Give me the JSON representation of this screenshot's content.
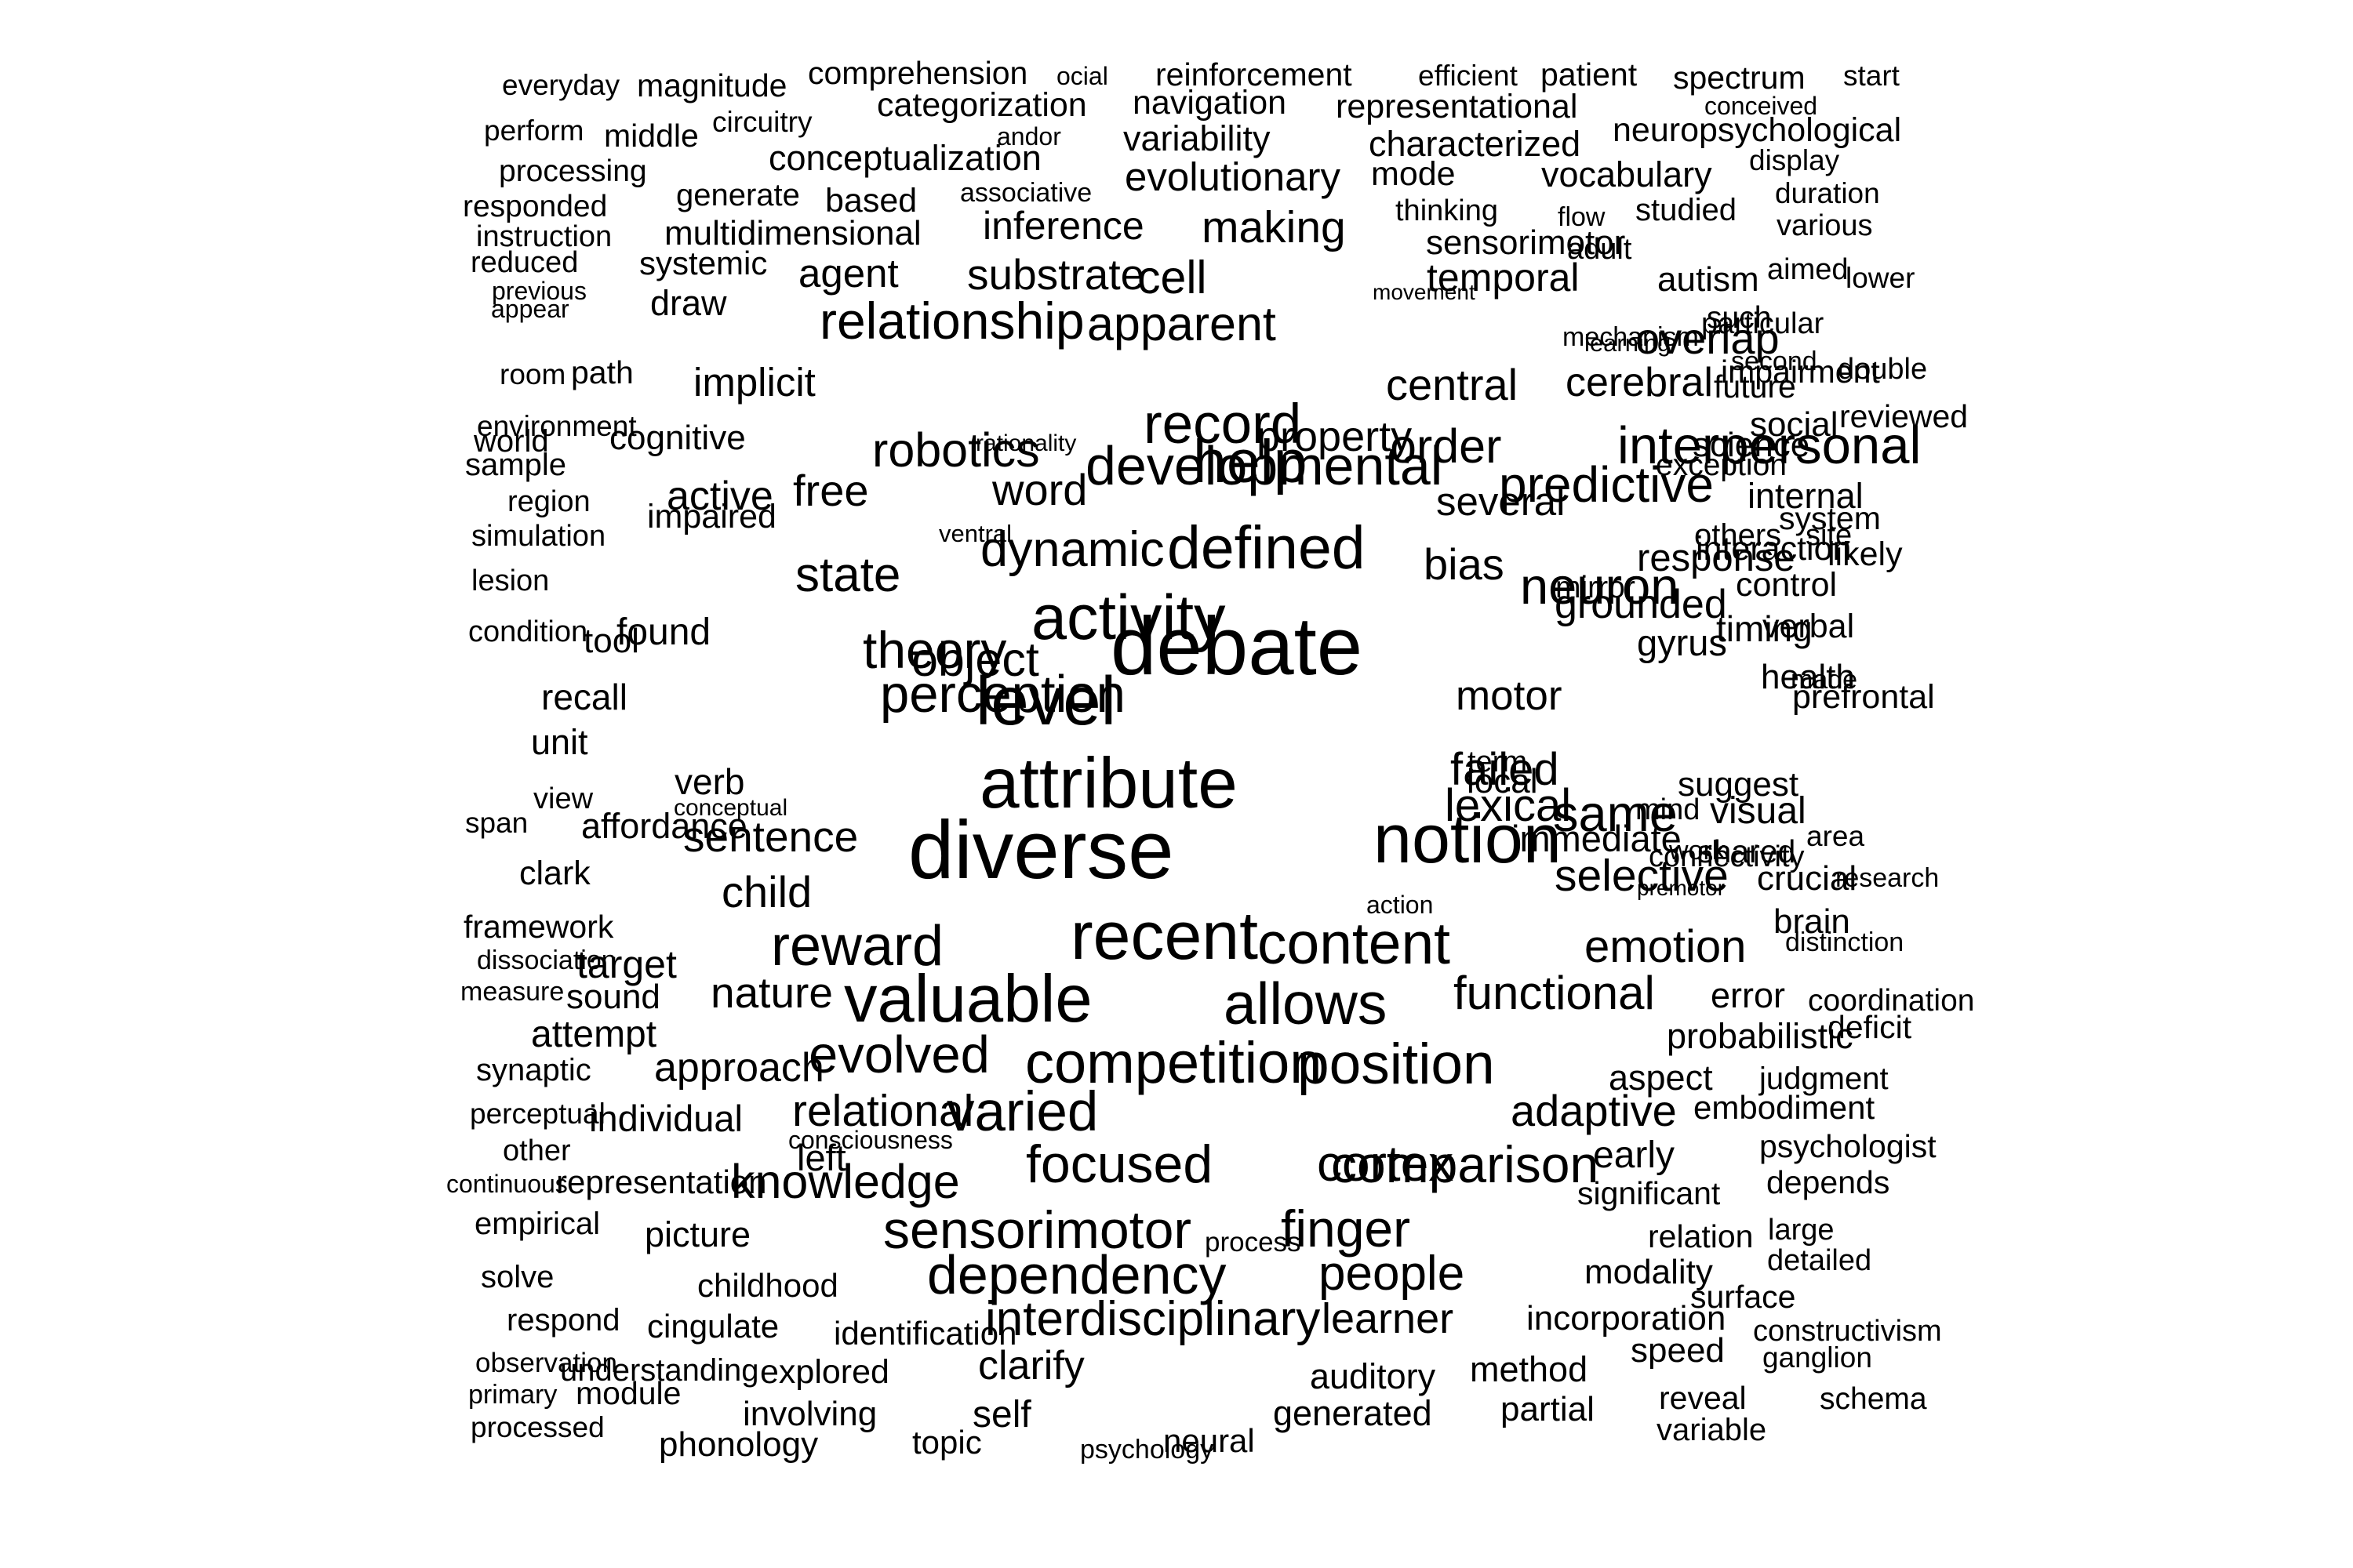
{
  "word_cloud": {
    "text_color": "#000000",
    "background_color": "#ffffff",
    "words": [
      "everyday",
      "magnitude",
      "comprehension",
      "ocial",
      "reinforcement",
      "efficient",
      "patient",
      "spectrum",
      "start",
      "perform",
      "middle",
      "circuitry",
      "categorization",
      "andor",
      "navigation",
      "representational",
      "conceived",
      "neuropsychological",
      "processing",
      "conceptualization",
      "variability",
      "characterized",
      "display",
      "responded",
      "generate",
      "based",
      "associative",
      "evolutionary",
      "mode",
      "vocabulary",
      "duration",
      "instruction",
      "multidimensional",
      "inference",
      "thinking",
      "flow",
      "studied",
      "various",
      "reduced",
      "systemic",
      "making",
      "sensorimotor",
      "adult",
      "aimed",
      "previous",
      "agent",
      "substrate",
      "cell",
      "movement",
      "temporal",
      "autism",
      "lower",
      "appear",
      "draw",
      "mechanism",
      "learning",
      "such",
      "relationship",
      "apparent",
      "overlap",
      "particular",
      "second",
      "double",
      "room",
      "path",
      "implicit",
      "impairment",
      "environment",
      "record",
      "property",
      "cerebral",
      "central",
      "future",
      "social",
      "reviewed",
      "world",
      "cognitive",
      "robotics",
      "rationality",
      "interpersonal",
      "help",
      "science",
      "order",
      "sample",
      "developmental",
      "word",
      "predictive",
      "exception",
      "simulation",
      "active",
      "free",
      "several",
      "internal",
      "others",
      "region",
      "impaired",
      "system",
      "site",
      "ventral",
      "interaction",
      "likely",
      "dynamic",
      "defined",
      "activity",
      "lesion",
      "bias",
      "neuron",
      "response",
      "mirror",
      "control",
      "condition",
      "found",
      "state",
      "gyrus",
      "verbal",
      "debate",
      "grounded",
      "timing",
      "theory",
      "made",
      "recall",
      "health",
      "tool",
      "object",
      "perception",
      "level",
      "motor",
      "unit",
      "prefrontal",
      "view",
      "term",
      "verb",
      "attribute",
      "local",
      "failed",
      "lexical",
      "suggest",
      "mind",
      "span",
      "conceptual",
      "affordance",
      "visual",
      "immediate",
      "connectivity",
      "shared",
      "same",
      "area",
      "clark",
      "notion",
      "research",
      "sentence",
      "selective",
      "work",
      "diverse",
      "crucial",
      "child",
      "framework",
      "action",
      "premotor",
      "brain",
      "recent",
      "dissociation",
      "target",
      "reward",
      "content",
      "emotion",
      "distinction",
      "measure",
      "sound",
      "nature",
      "valuable",
      "allows",
      "functional",
      "error",
      "coordination",
      "attempt",
      "probabilistic",
      "deficit",
      "evolved",
      "competition",
      "position",
      "synaptic",
      "approach",
      "aspect",
      "judgment",
      "perceptual",
      "individual",
      "relational",
      "varied",
      "adaptive",
      "embodiment",
      "left",
      "consciousness",
      "other",
      "early",
      "psychologist",
      "cortex",
      "comparison",
      "continuous",
      "representation",
      "knowledge",
      "focused",
      "significant",
      "depends",
      "empirical",
      "sensorimotor",
      "process",
      "finger",
      "relation",
      "large",
      "picture",
      "detailed",
      "solve",
      "childhood",
      "dependency",
      "interdisciplinary",
      "people",
      "modality",
      "surface",
      "respond",
      "cingulate",
      "learner",
      "incorporation",
      "constructivism",
      "identification",
      "speed",
      "ganglion",
      "observation",
      "understanding",
      "explored",
      "clarify",
      "auditory",
      "method",
      "primary",
      "module",
      "reveal",
      "schema",
      "involving",
      "self",
      "generated",
      "partial",
      "processed",
      "variable",
      "phonology",
      "topic",
      "psychology",
      "neural"
    ]
  }
}
